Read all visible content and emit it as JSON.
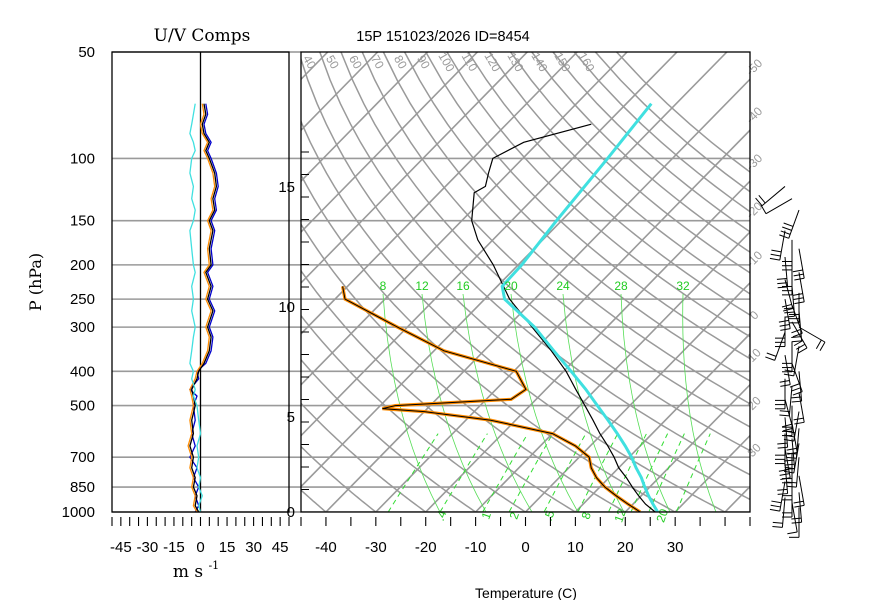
{
  "chart_data": [
    {
      "type": "line",
      "title": "U/V Comps",
      "xlabel": "m s",
      "xlabel_exponent": "-1",
      "ylabel": "P (hPa)",
      "xlim": [
        -50,
        50
      ],
      "ylim_hpa": [
        1000,
        50
      ],
      "log_y": true,
      "grid": "pressure lines only",
      "pressure_ticks": [
        "50",
        "100",
        "150",
        "200",
        "250",
        "300",
        "400",
        "500",
        "700",
        "850",
        "1000"
      ],
      "x_ticks": [
        "-45",
        "-30",
        "-15",
        "0",
        "15",
        "30",
        "45"
      ],
      "series": [
        {
          "color": "#0000cc",
          "pressure": [
            1000,
            960,
            900,
            850,
            800,
            750,
            700,
            650,
            600,
            550,
            500,
            470,
            450,
            420,
            400,
            380,
            350,
            320,
            300,
            270,
            250,
            230,
            210,
            200,
            180,
            160,
            150,
            140,
            130,
            120,
            110,
            100,
            95,
            90,
            85,
            80,
            75,
            70
          ],
          "values": [
            -3,
            -1,
            -3,
            -1,
            -4,
            -2,
            -6,
            -3,
            -5,
            -3,
            -4,
            -2,
            -6,
            -1,
            -2,
            3,
            6,
            7,
            5,
            8,
            5,
            7,
            4,
            7,
            6,
            8,
            6,
            9,
            8,
            10,
            9,
            6,
            4,
            6,
            3,
            2,
            4,
            3
          ]
        },
        {
          "color": "#000000",
          "pressure": [
            1000,
            960,
            900,
            850,
            800,
            750,
            700,
            650,
            600,
            550,
            500,
            470,
            450,
            420,
            400,
            380,
            350,
            320,
            300,
            270,
            250,
            230,
            210,
            200,
            180,
            160,
            150,
            140,
            130,
            120,
            110,
            100,
            95,
            90,
            85,
            80,
            75,
            70
          ],
          "values": [
            -1,
            -3,
            -2,
            -4,
            -3,
            -5,
            -4,
            -6,
            -4,
            -5,
            -3,
            -4,
            -5,
            -2,
            -1,
            2,
            5,
            6,
            4,
            7,
            4,
            6,
            3,
            6,
            5,
            7,
            5,
            8,
            7,
            9,
            8,
            5,
            3,
            5,
            2,
            1,
            3,
            2
          ]
        },
        {
          "color": "#ff8c00",
          "pressure": [
            1000,
            960,
            900,
            850,
            800,
            750,
            700,
            650,
            600,
            550,
            500,
            470,
            450,
            420,
            400,
            380,
            350,
            320,
            300,
            270,
            250,
            230,
            210,
            200,
            180,
            160,
            150,
            140,
            130,
            120,
            110,
            100,
            95,
            90,
            85,
            80,
            75,
            70
          ],
          "values": [
            -2,
            -4,
            -3,
            -5,
            -4,
            -6,
            -5,
            -7,
            -5,
            -6,
            -4,
            -5,
            -6,
            -3,
            -2,
            1,
            4,
            5,
            3,
            6,
            3,
            5,
            2,
            5,
            4,
            6,
            4,
            7,
            6,
            8,
            7,
            4,
            2,
            4,
            1,
            0,
            2,
            1
          ]
        },
        {
          "color": "#40e0e0",
          "pressure": [
            1000,
            960,
            900,
            850,
            800,
            750,
            700,
            650,
            600,
            550,
            500,
            470,
            450,
            420,
            400,
            380,
            350,
            320,
            300,
            270,
            250,
            230,
            210,
            200,
            180,
            160,
            150,
            140,
            130,
            120,
            110,
            100,
            95,
            90,
            85,
            80,
            75,
            70
          ],
          "values": [
            0,
            -1,
            1,
            -1,
            0,
            -2,
            -1,
            -2,
            0,
            -1,
            -2,
            -4,
            -3,
            -5,
            -4,
            -6,
            -5,
            -4,
            -3,
            -5,
            -4,
            -5,
            -3,
            -4,
            -5,
            -6,
            -4,
            -3,
            -5,
            -4,
            -6,
            -5,
            -3,
            -4,
            -6,
            -5,
            -4,
            -3
          ]
        }
      ]
    },
    {
      "type": "line",
      "title": "15P 151023/2026 ID=8454",
      "xlabel": "Temperature (C)",
      "xlim": [
        -45,
        45
      ],
      "x_ticks": [
        "-40",
        "-30",
        "-20",
        "-10",
        "0",
        "10",
        "20",
        "30"
      ],
      "height_axis_ticks": [
        "0",
        "5",
        "10",
        "15"
      ],
      "grid": "skew-T / log-P diagram",
      "mixing_ratio_labels": [
        ".4",
        "1",
        "2",
        ".5",
        "8",
        "12",
        "20"
      ],
      "theta_e_labels": [
        "8",
        "12",
        "16",
        "20",
        "24",
        "28",
        "32"
      ],
      "isotherm_labels": [
        "-50",
        "-40",
        "-30",
        "-20",
        "-10",
        "0",
        "10",
        "20",
        "30",
        "40"
      ],
      "dry_adiabat_labels": [
        "40",
        "50",
        "60",
        "70",
        "80",
        "90",
        "100",
        "110",
        "120",
        "130",
        "140",
        "150",
        "160"
      ],
      "series": [
        {
          "name": "temperature",
          "color": "#000000",
          "pressure": [
            1000,
            950,
            900,
            850,
            800,
            750,
            700,
            650,
            600,
            550,
            500,
            450,
            400,
            350,
            300,
            250,
            200,
            170,
            150,
            125,
            120,
            110,
            100,
            90,
            80
          ],
          "temperature": [
            26,
            22.5,
            19.5,
            16.5,
            13.5,
            10,
            7,
            3.5,
            -0.5,
            -4.5,
            -9,
            -14,
            -19.5,
            -26.5,
            -35,
            -45,
            -55,
            -63,
            -68,
            -73,
            -72,
            -74,
            -76,
            -73,
            -63
          ]
        },
        {
          "name": "dewpoint",
          "color": "#ff8c00",
          "pressure": [
            1000,
            950,
            900,
            850,
            800,
            750,
            700,
            650,
            600,
            550,
            520,
            510,
            500,
            480,
            450,
            400,
            350,
            300,
            250,
            230
          ],
          "temperature": [
            23,
            19,
            15,
            11,
            7.5,
            4.5,
            2,
            -3,
            -10,
            -25,
            -40,
            -49,
            -47,
            -25,
            -24,
            -29.5,
            -48,
            -62,
            -78,
            -81
          ]
        },
        {
          "name": "parcel",
          "color": "#40e0e0",
          "pressure": [
            1000,
            950,
            900,
            850,
            800,
            750,
            700,
            650,
            600,
            550,
            500,
            450,
            400,
            350,
            300,
            250,
            230,
            200,
            150,
            100,
            70
          ],
          "temperature": [
            26.5,
            24,
            21.5,
            19,
            16.5,
            13.5,
            10.5,
            7,
            3,
            -1.5,
            -6.5,
            -12,
            -18.5,
            -26,
            -34.5,
            -46,
            -49,
            -49.3,
            -51,
            -53,
            -55
          ]
        }
      ]
    },
    {
      "type": "scatter",
      "title": "",
      "series": [
        {
          "name": "wind barbs",
          "pressure": [
            120,
            130,
            140,
            160,
            170,
            180,
            190,
            200,
            210,
            220,
            230,
            240,
            250,
            260,
            270,
            280,
            290,
            300,
            310,
            330,
            340,
            360,
            380,
            400,
            420,
            440,
            460,
            480,
            500,
            520,
            540,
            560,
            580,
            600,
            620,
            640,
            660,
            680,
            700,
            730,
            760,
            790,
            820,
            850,
            880,
            910,
            940,
            970
          ],
          "direction_deg": [
            230,
            240,
            200,
            190,
            180,
            170,
            175,
            180,
            170,
            165,
            175,
            180,
            170,
            160,
            175,
            180,
            150,
            120,
            200,
            180,
            190,
            170,
            160,
            175,
            180,
            185,
            170,
            165,
            180,
            190,
            175,
            170,
            185,
            180,
            175,
            190,
            170,
            180,
            185,
            175,
            180,
            170,
            190,
            180,
            175,
            185,
            170,
            180
          ],
          "speed_kt": [
            15,
            10,
            35,
            30,
            25,
            30,
            25,
            30,
            25,
            20,
            25,
            30,
            25,
            20,
            20,
            25,
            30,
            15,
            20,
            25,
            15,
            20,
            25,
            20,
            25,
            20,
            15,
            20,
            25,
            30,
            20,
            15,
            20,
            25,
            30,
            20,
            25,
            20,
            15,
            20,
            15,
            20,
            25,
            15,
            20,
            15,
            10,
            10
          ]
        }
      ]
    }
  ]
}
